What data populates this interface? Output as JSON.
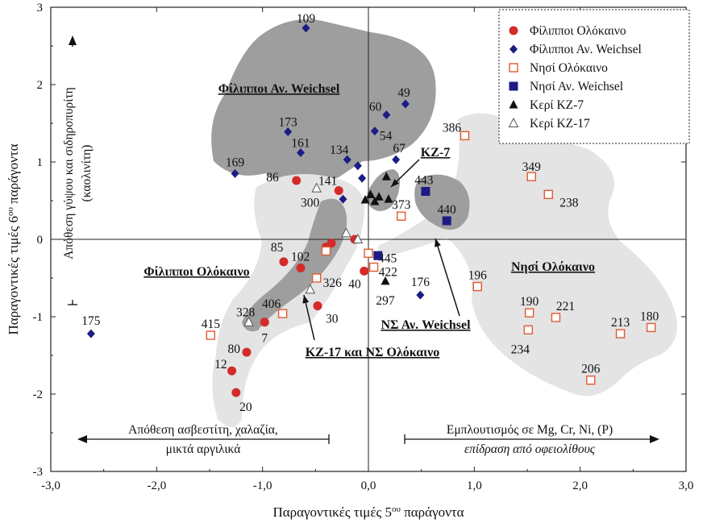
{
  "chart_data": {
    "type": "scatter",
    "xlabel": "Παραγοντικές τιμές 5ου παράγοντα",
    "xlabel_sup": "ου",
    "ylabel": "Παραγοντικές τιμές 6ου παράγοντα",
    "xlim": [
      -3,
      3
    ],
    "ylim": [
      -3,
      3
    ],
    "xticks": [
      "-3,0",
      "-2,0",
      "-1,0",
      "0,0",
      "1,0",
      "2,0",
      "3,0"
    ],
    "yticks": [
      "-3",
      "-2",
      "-1",
      "0",
      "1",
      "2",
      "3"
    ],
    "grid": false,
    "legend_position": "top-right",
    "colors": {
      "red": "#d42a2a",
      "navy": "#1c1c84",
      "orange": "#e05a30",
      "black": "#111111",
      "light_region": "#e4e4e4",
      "dark_region": "#9e9e9e"
    },
    "series": [
      {
        "name": "Φίλιπποι Ολόκαινο",
        "marker": "circle-red",
        "points": [
          {
            "x": -0.68,
            "y": 0.76,
            "label": "86"
          },
          {
            "x": -0.28,
            "y": 0.63,
            "label": "141"
          },
          {
            "x": -0.8,
            "y": -0.29,
            "label": "85"
          },
          {
            "x": -0.64,
            "y": -0.37,
            "label": "102"
          },
          {
            "x": -0.4,
            "y": -0.1,
            "label": ""
          },
          {
            "x": -0.35,
            "y": -0.05,
            "label": ""
          },
          {
            "x": -0.13,
            "y": 0.0,
            "label": ""
          },
          {
            "x": -0.04,
            "y": -0.41,
            "label": "40"
          },
          {
            "x": -0.48,
            "y": -0.86,
            "label": "30"
          },
          {
            "x": -0.98,
            "y": -1.07,
            "label": "7"
          },
          {
            "x": -1.15,
            "y": -1.46,
            "label": "80"
          },
          {
            "x": -1.29,
            "y": -1.7,
            "label": "12"
          },
          {
            "x": -1.25,
            "y": -1.98,
            "label": "20"
          }
        ]
      },
      {
        "name": "Φίλιπποι Αν. Weichsel",
        "marker": "diamond-navy",
        "points": [
          {
            "x": -0.59,
            "y": 2.73,
            "label": "109"
          },
          {
            "x": 0.35,
            "y": 1.75,
            "label": "49"
          },
          {
            "x": 0.17,
            "y": 1.61,
            "label": "60"
          },
          {
            "x": 0.06,
            "y": 1.4,
            "label": "54"
          },
          {
            "x": -0.76,
            "y": 1.39,
            "label": "173"
          },
          {
            "x": -0.64,
            "y": 1.12,
            "label": "161"
          },
          {
            "x": -1.26,
            "y": 0.85,
            "label": "169"
          },
          {
            "x": -0.2,
            "y": 1.03,
            "label": "134"
          },
          {
            "x": -0.1,
            "y": 0.95,
            "label": ""
          },
          {
            "x": -0.06,
            "y": 0.79,
            "label": ""
          },
          {
            "x": 0.26,
            "y": 1.03,
            "label": "67"
          },
          {
            "x": -0.24,
            "y": 0.52,
            "label": ""
          },
          {
            "x": -2.62,
            "y": -1.22,
            "label": "175"
          },
          {
            "x": 0.49,
            "y": -0.72,
            "label": "176"
          }
        ]
      },
      {
        "name": "Νησί Ολόκαινο",
        "marker": "square-open-orange",
        "points": [
          {
            "x": 0.91,
            "y": 1.34,
            "label": "386"
          },
          {
            "x": 1.54,
            "y": 0.81,
            "label": "349"
          },
          {
            "x": 1.7,
            "y": 0.58,
            "label": "238"
          },
          {
            "x": 0.31,
            "y": 0.3,
            "label": "373"
          },
          {
            "x": 0.0,
            "y": -0.18,
            "label": "445"
          },
          {
            "x": 0.05,
            "y": -0.36,
            "label": "422"
          },
          {
            "x": -0.49,
            "y": -0.5,
            "label": "326"
          },
          {
            "x": -0.4,
            "y": -0.15,
            "label": ""
          },
          {
            "x": -0.81,
            "y": -0.96,
            "label": "406"
          },
          {
            "x": -1.49,
            "y": -1.24,
            "label": "415"
          },
          {
            "x": 1.03,
            "y": -0.61,
            "label": "196"
          },
          {
            "x": 1.52,
            "y": -0.95,
            "label": "190"
          },
          {
            "x": 1.77,
            "y": -1.01,
            "label": "221"
          },
          {
            "x": 1.51,
            "y": -1.17,
            "label": "234"
          },
          {
            "x": 2.38,
            "y": -1.22,
            "label": "213"
          },
          {
            "x": 2.67,
            "y": -1.14,
            "label": "180"
          },
          {
            "x": 2.1,
            "y": -1.82,
            "label": "206"
          }
        ]
      },
      {
        "name": "Νησί Αν. Weichsel",
        "marker": "square-navy",
        "points": [
          {
            "x": 0.54,
            "y": 0.62,
            "label": "443"
          },
          {
            "x": 0.74,
            "y": 0.24,
            "label": "440"
          },
          {
            "x": 0.09,
            "y": -0.21,
            "label": ""
          }
        ]
      },
      {
        "name": "Κερί ΚΖ-7",
        "marker": "triangle-black",
        "points": [
          {
            "x": -0.03,
            "y": 0.51,
            "label": ""
          },
          {
            "x": 0.02,
            "y": 0.58,
            "label": ""
          },
          {
            "x": 0.06,
            "y": 0.49,
            "label": ""
          },
          {
            "x": 0.1,
            "y": 0.55,
            "label": ""
          },
          {
            "x": 0.17,
            "y": 0.81,
            "label": ""
          },
          {
            "x": 0.19,
            "y": 0.52,
            "label": ""
          },
          {
            "x": 0.16,
            "y": -0.54,
            "label": "297"
          }
        ]
      },
      {
        "name": "Κερί ΚΖ-17",
        "marker": "triangle-open",
        "points": [
          {
            "x": -0.49,
            "y": 0.66,
            "label": "300"
          },
          {
            "x": -0.21,
            "y": 0.08,
            "label": ""
          },
          {
            "x": -0.1,
            "y": 0.0,
            "label": ""
          },
          {
            "x": -0.55,
            "y": -0.65,
            "label": ""
          },
          {
            "x": -1.13,
            "y": -1.07,
            "label": "328"
          }
        ]
      }
    ],
    "regions": [
      {
        "name": "Φίλιπποι Αν. Weichsel",
        "label": "Φίλιπποι Αν. Weichsel",
        "shade": "dark"
      },
      {
        "name": "Φίλιπποι Ολόκαινο",
        "label": "Φίλιπποι Ολόκαινο",
        "shade": "light"
      },
      {
        "name": "ΚΖ-17 και ΝΣ Ολόκαινο",
        "label": "ΚΖ-17 και ΝΣ Ολόκαινο",
        "shade": "dark"
      },
      {
        "name": "ΚΖ-7",
        "label": "ΚΖ-7",
        "shade": "dark"
      },
      {
        "name": "ΝΣ Αν. Weichsel",
        "label": "ΝΣ Αν. Weichsel",
        "shade": "light"
      },
      {
        "name": "Νησί Ολόκαινο",
        "label": "Νησί Ολόκαινο",
        "shade": "light"
      }
    ],
    "annotations": {
      "left_bottom_1": "Απόθεση ασβεστίτη, χαλαζία,",
      "left_bottom_2": "μικτά αργιλικά",
      "right_bottom_1": "Εμπλουτισμός σε Mg, Cr, Ni, (P)",
      "right_bottom_2": "επίδραση από οφειολίθους",
      "vertical_1": "Απόθεση γύψου και σιδηροπυρίτη",
      "vertical_2": "(καολινίτη)"
    }
  }
}
